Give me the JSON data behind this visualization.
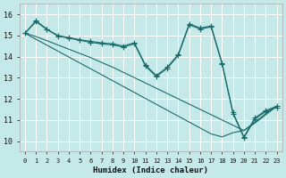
{
  "xlabel": "Humidex (Indice chaleur)",
  "xlim": [
    -0.5,
    23.5
  ],
  "ylim": [
    9.5,
    16.5
  ],
  "yticks": [
    10,
    11,
    12,
    13,
    14,
    15,
    16
  ],
  "xticks": [
    0,
    1,
    2,
    3,
    4,
    5,
    6,
    7,
    8,
    9,
    10,
    11,
    12,
    13,
    14,
    15,
    16,
    17,
    18,
    19,
    20,
    21,
    22,
    23
  ],
  "xtick_labels": [
    "0",
    "1",
    "2",
    "3",
    "4",
    "5",
    "6",
    "7",
    "8",
    "9",
    "10",
    "11",
    "12",
    "13",
    "14",
    "15",
    "16",
    "17",
    "18",
    "19",
    "20",
    "21",
    "22",
    "23"
  ],
  "background_color": "#c5e8e8",
  "grid_color": "#ffffff",
  "line_color": "#1a6b6b",
  "jagged_line": [
    15.1,
    15.7,
    15.3,
    15.0,
    14.9,
    14.8,
    14.72,
    14.65,
    14.6,
    14.5,
    14.65,
    13.6,
    13.1,
    13.5,
    14.1,
    15.55,
    15.35,
    15.45,
    13.7,
    11.35,
    10.2,
    11.1,
    11.45,
    11.65
  ],
  "jagged_line2": [
    15.1,
    15.65,
    15.28,
    14.97,
    14.87,
    14.77,
    14.67,
    14.6,
    14.55,
    14.45,
    14.6,
    13.55,
    13.05,
    13.45,
    14.05,
    15.5,
    15.3,
    15.4,
    13.65,
    11.3,
    10.15,
    11.05,
    11.4,
    11.6
  ],
  "diag_line1": [
    15.1,
    14.82,
    14.54,
    14.26,
    13.98,
    13.7,
    13.42,
    13.14,
    12.86,
    12.58,
    12.3,
    12.02,
    11.74,
    11.46,
    11.18,
    10.9,
    10.62,
    10.34,
    10.2,
    10.4,
    10.5,
    10.9,
    11.3,
    11.65
  ],
  "diag_line2": [
    15.1,
    14.95,
    14.75,
    14.55,
    14.35,
    14.15,
    13.95,
    13.72,
    13.5,
    13.25,
    13.0,
    12.75,
    12.5,
    12.25,
    12.0,
    11.75,
    11.5,
    11.25,
    11.0,
    10.75,
    10.5,
    10.85,
    11.25,
    11.65
  ]
}
